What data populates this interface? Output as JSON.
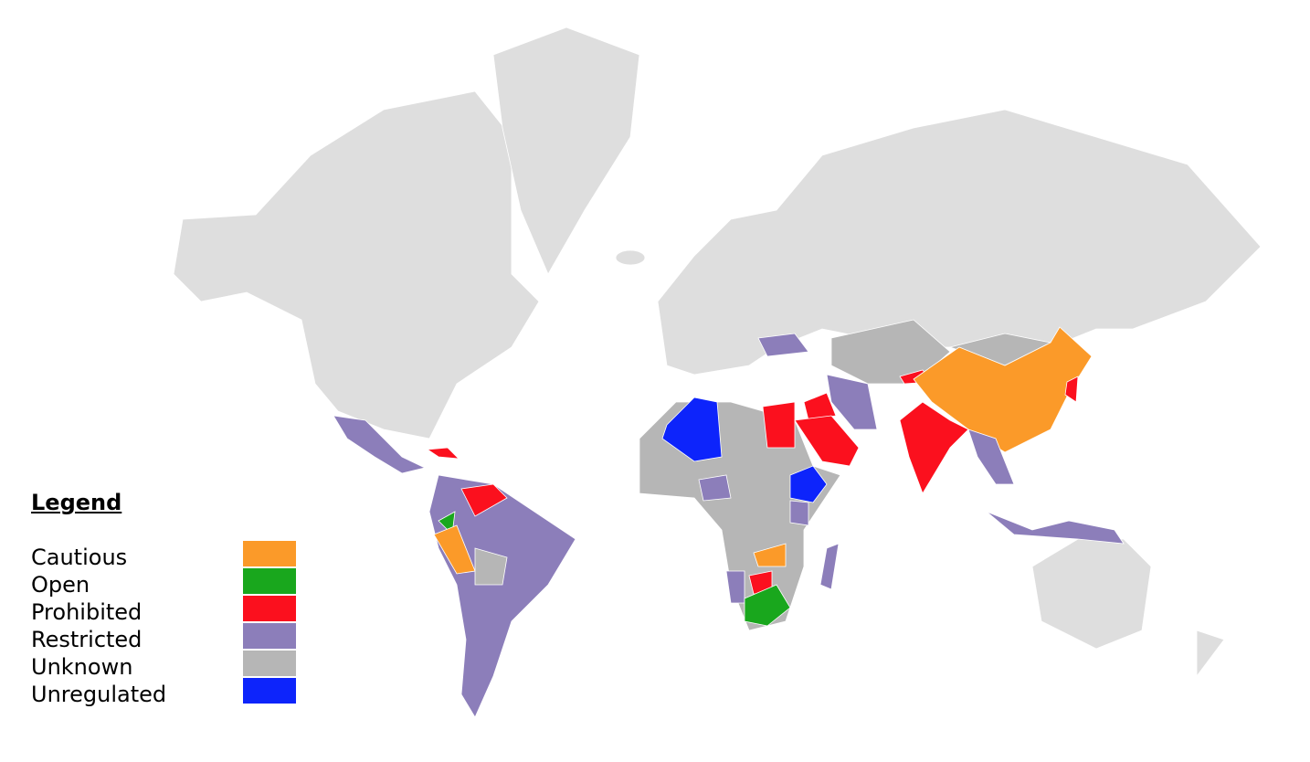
{
  "legend": {
    "title": "Legend",
    "items": [
      {
        "label": "Cautious",
        "color": "#fb9a29"
      },
      {
        "label": "Open",
        "color": "#19a71d"
      },
      {
        "label": "Prohibited",
        "color": "#fb101e"
      },
      {
        "label": "Restricted",
        "color": "#8c7eba"
      },
      {
        "label": "Unknown",
        "color": "#b6b6b6"
      },
      {
        "label": "Unregulated",
        "color": "#0d24fb"
      }
    ]
  },
  "no_data_color": "#dedede",
  "regions": [
    {
      "id": "mexico",
      "category": "Restricted"
    },
    {
      "id": "south-america",
      "category": "Restricted"
    },
    {
      "id": "venezuela",
      "category": "Prohibited"
    },
    {
      "id": "colombia",
      "category": "Open"
    },
    {
      "id": "peru",
      "category": "Cautious"
    },
    {
      "id": "bolivia",
      "category": "Unknown"
    },
    {
      "id": "cuba",
      "category": "Prohibited"
    },
    {
      "id": "africa",
      "category": "Unknown"
    },
    {
      "id": "algeria",
      "category": "Unregulated"
    },
    {
      "id": "egypt",
      "category": "Prohibited"
    },
    {
      "id": "ethiopia",
      "category": "Unregulated"
    },
    {
      "id": "nigeria",
      "category": "Restricted"
    },
    {
      "id": "kenya",
      "category": "Restricted"
    },
    {
      "id": "zambia",
      "category": "Cautious"
    },
    {
      "id": "zimbabwe",
      "category": "Prohibited"
    },
    {
      "id": "namibia",
      "category": "Restricted"
    },
    {
      "id": "south-africa",
      "category": "Open"
    },
    {
      "id": "madagascar",
      "category": "Restricted"
    },
    {
      "id": "saudi-arabia",
      "category": "Prohibited"
    },
    {
      "id": "iraq",
      "category": "Prohibited"
    },
    {
      "id": "iran",
      "category": "Restricted"
    },
    {
      "id": "ukraine",
      "category": "Restricted"
    },
    {
      "id": "central-asia",
      "category": "Unknown"
    },
    {
      "id": "mongolia",
      "category": "Unknown"
    },
    {
      "id": "china",
      "category": "Cautious"
    },
    {
      "id": "india",
      "category": "Prohibited"
    },
    {
      "id": "southeast-asia",
      "category": "Restricted"
    },
    {
      "id": "indonesia",
      "category": "Restricted"
    },
    {
      "id": "north-korea",
      "category": "Prohibited"
    },
    {
      "id": "kyrgyzstan",
      "category": "Prohibited"
    }
  ]
}
